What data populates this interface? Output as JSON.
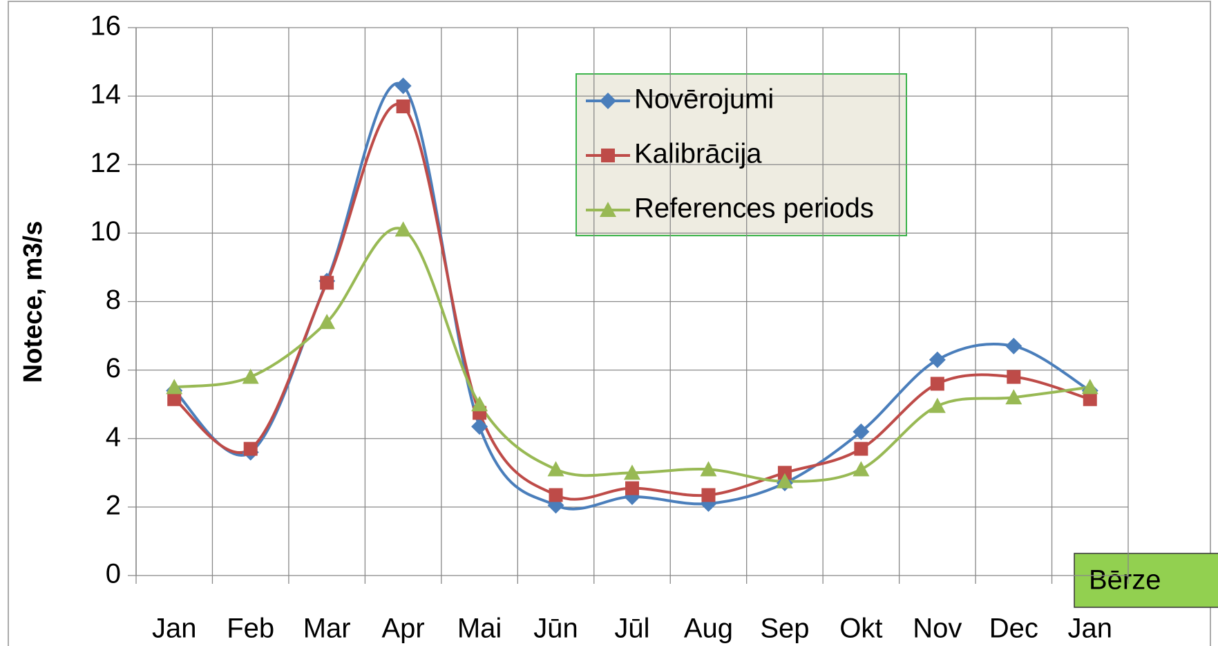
{
  "chart_data": {
    "type": "line",
    "y_label": "Notece, m3/s",
    "annotation": "Bērze",
    "categories": [
      "Jan",
      "Feb",
      "Mar",
      "Apr",
      "Mai",
      "Jūn",
      "Jūl",
      "Aug",
      "Sep",
      "Okt",
      "Nov",
      "Dec",
      "Jan"
    ],
    "series": [
      {
        "name": "Novērojumi",
        "color": "#4a7ebb",
        "marker": "diamond",
        "values": [
          5.4,
          3.6,
          8.6,
          14.3,
          4.35,
          2.05,
          2.3,
          2.1,
          2.7,
          4.2,
          6.3,
          6.7,
          5.4
        ]
      },
      {
        "name": "Kalibrācija",
        "color": "#be4b48",
        "marker": "square",
        "values": [
          5.15,
          3.7,
          8.55,
          13.7,
          4.75,
          2.35,
          2.55,
          2.35,
          3.0,
          3.7,
          5.6,
          5.8,
          5.15
        ]
      },
      {
        "name": "References periods",
        "color": "#98b954",
        "marker": "triangle",
        "values": [
          5.5,
          5.8,
          7.4,
          10.1,
          5.0,
          3.1,
          3.0,
          3.1,
          2.75,
          3.1,
          4.95,
          5.2,
          5.5
        ]
      }
    ],
    "ylim": [
      0,
      16
    ],
    "yticks": [
      0,
      2,
      4,
      6,
      8,
      10,
      12,
      14,
      16
    ],
    "grid": true,
    "legend": "top-right"
  }
}
